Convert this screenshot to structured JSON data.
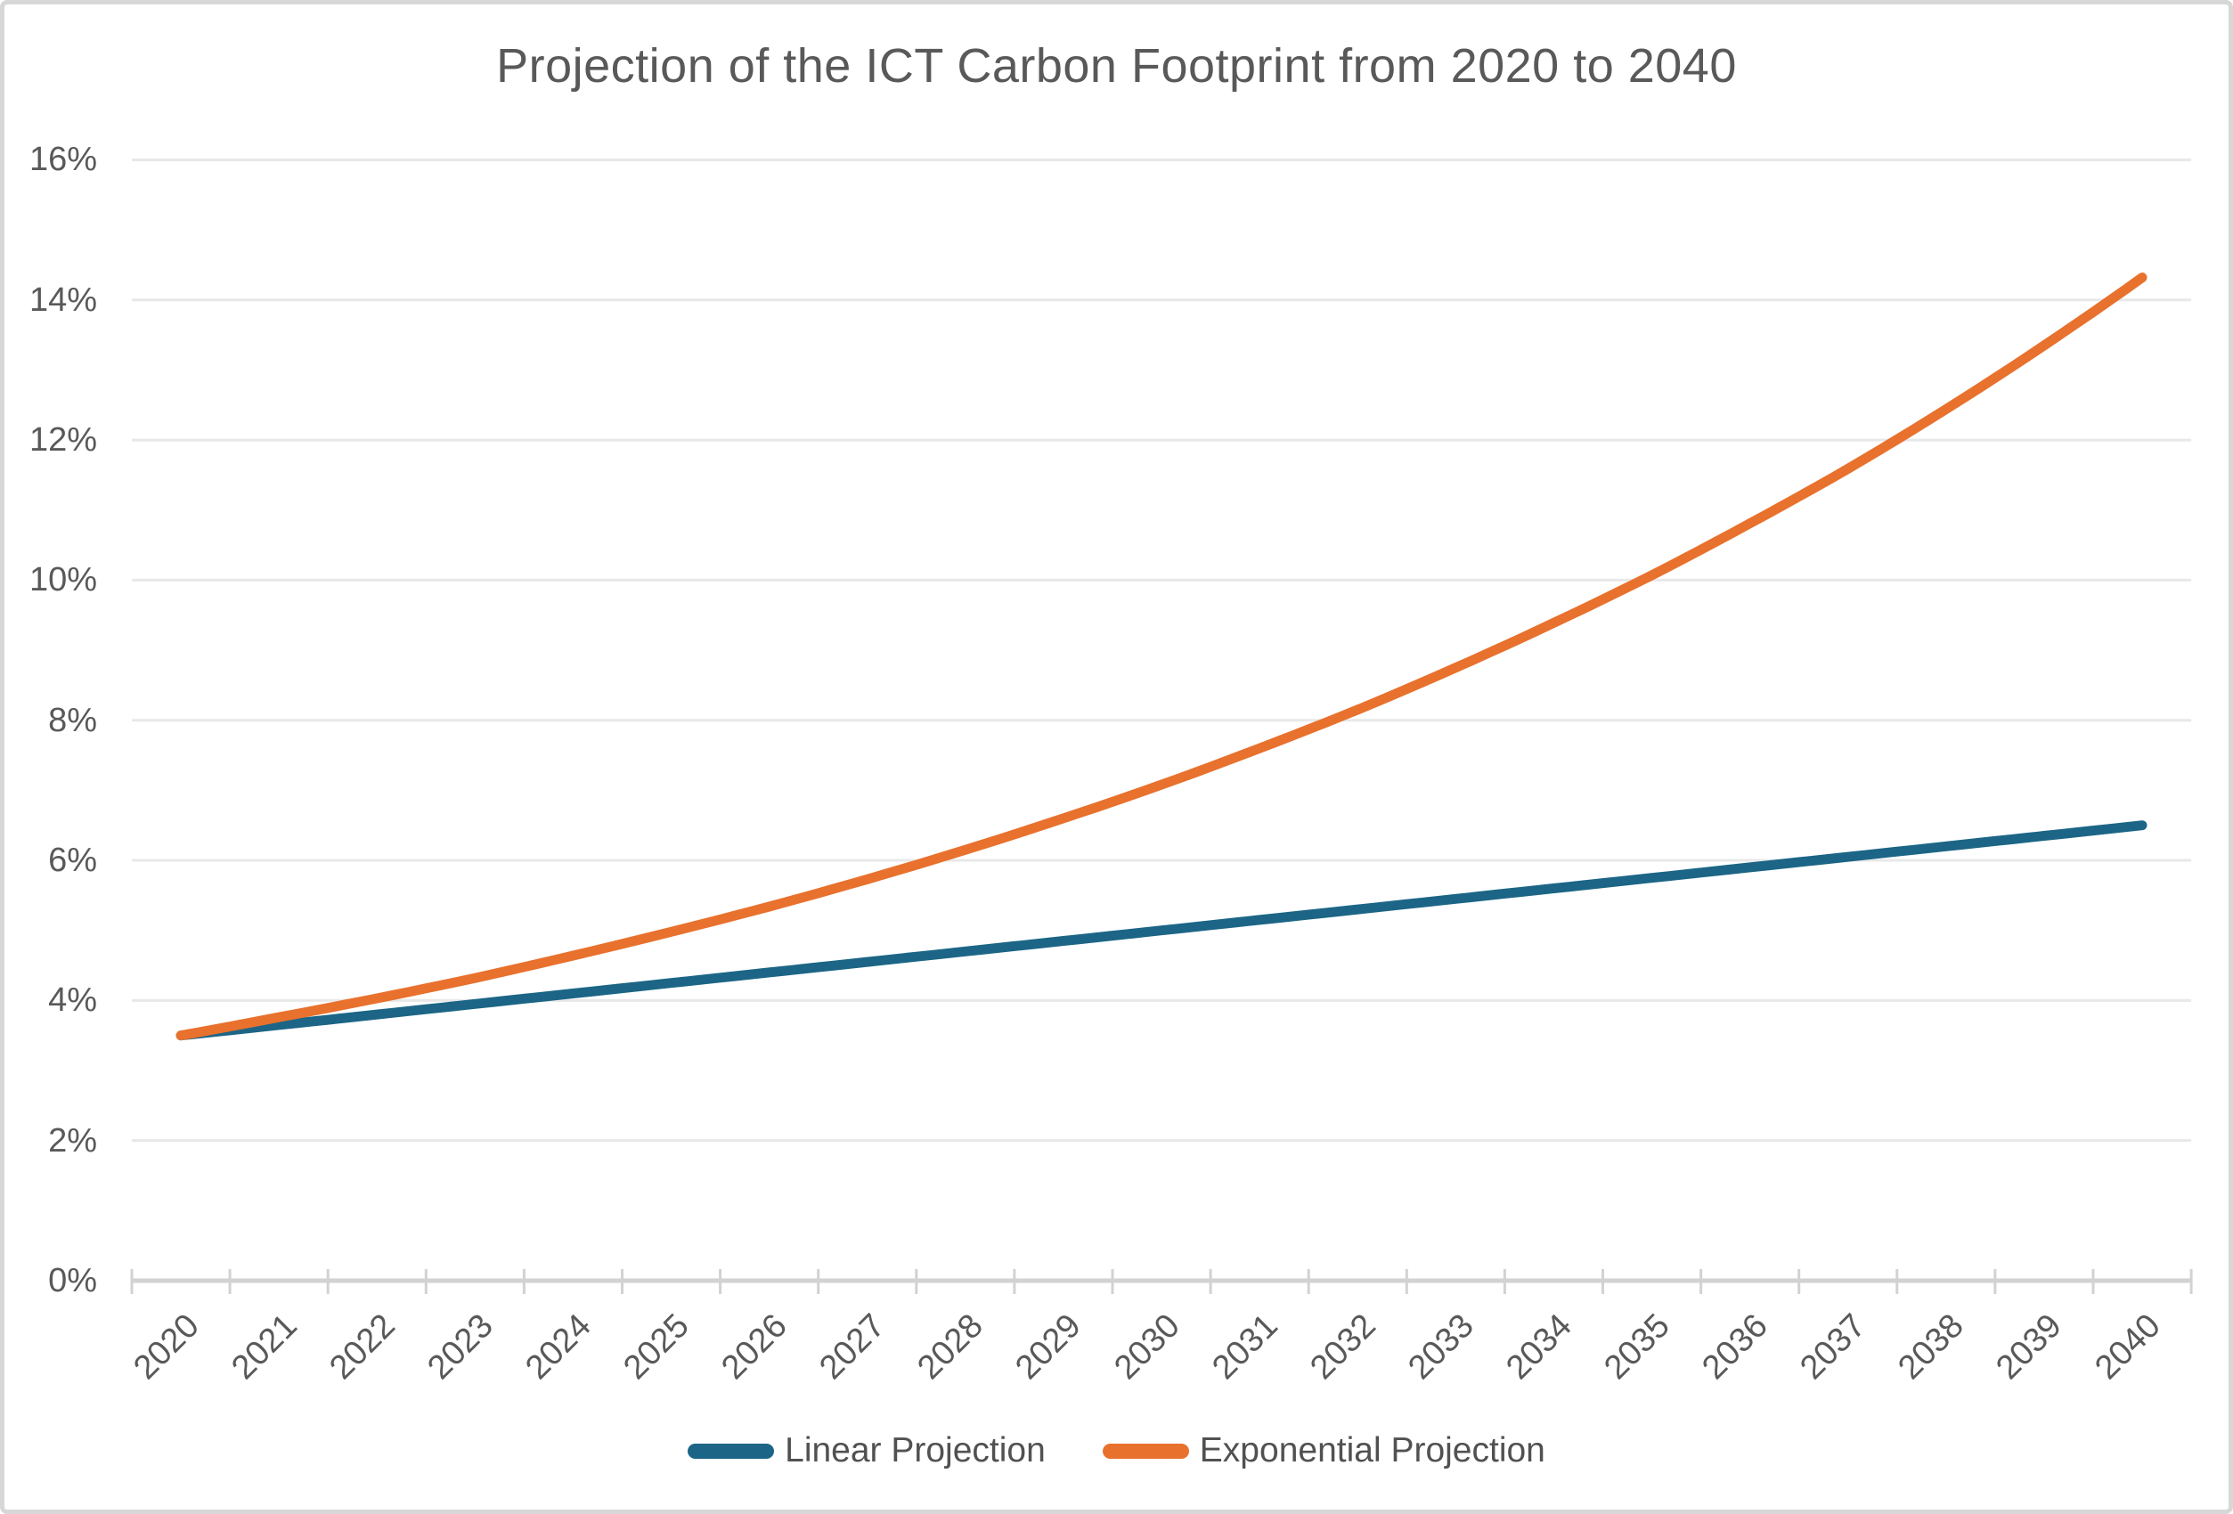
{
  "chart_data": {
    "type": "line",
    "title": "Projection of the ICT Carbon Footprint from 2020 to 2040",
    "categories": [
      "2020",
      "2021",
      "2022",
      "2023",
      "2024",
      "2025",
      "2026",
      "2027",
      "2028",
      "2029",
      "2030",
      "2031",
      "2032",
      "2033",
      "2034",
      "2035",
      "2036",
      "2037",
      "2038",
      "2039",
      "2040"
    ],
    "series": [
      {
        "name": "Linear Projection",
        "color": "#1c6586",
        "values": [
          3.5,
          3.65,
          3.8,
          3.95,
          4.1,
          4.25,
          4.4,
          4.55,
          4.7,
          4.85,
          5.0,
          5.15,
          5.3,
          5.45,
          5.6,
          5.75,
          5.9,
          6.05,
          6.2,
          6.35,
          6.5
        ]
      },
      {
        "name": "Exponential Projection",
        "color": "#e8712d",
        "values": [
          3.5,
          3.76,
          4.03,
          4.32,
          4.64,
          4.98,
          5.34,
          5.73,
          6.15,
          6.6,
          7.08,
          7.6,
          8.15,
          8.75,
          9.39,
          10.07,
          10.81,
          11.59,
          12.44,
          13.35,
          14.32
        ]
      }
    ],
    "xlabel": "",
    "ylabel": "",
    "ylim": [
      0,
      16
    ],
    "ytick_step": 2,
    "ytick_labels": [
      "0%",
      "2%",
      "4%",
      "6%",
      "8%",
      "10%",
      "12%",
      "14%",
      "16%"
    ],
    "grid": "horizontal",
    "legend_position": "bottom",
    "axis_text_color": "#595959",
    "grid_color": "#e8e8e8",
    "axis_line_color": "#d2d2d2",
    "background_color": "#ffffff"
  }
}
